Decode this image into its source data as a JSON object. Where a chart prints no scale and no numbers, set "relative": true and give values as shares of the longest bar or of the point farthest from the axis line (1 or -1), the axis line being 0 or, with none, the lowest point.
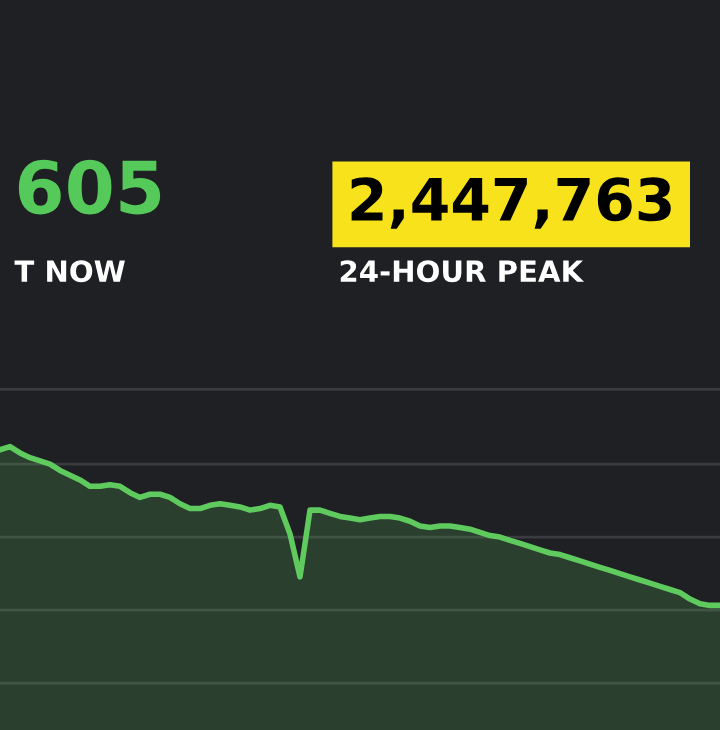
{
  "chart_data": {
    "type": "area",
    "relative": true,
    "color": "#5fcb5f",
    "ref_lines": [
      {
        "axis": "y",
        "value": 1.36,
        "color": "#3a3b3f"
      },
      {
        "axis": "y",
        "value": 0.89,
        "color": "#3a3b3f"
      },
      {
        "axis": "y",
        "value": 0.43,
        "color": "#3a3b3f"
      },
      {
        "axis": "y",
        "value": -0.03,
        "color": "#3a3b3f"
      },
      {
        "axis": "y",
        "value": -0.49,
        "color": "#3a3b3f"
      }
    ],
    "annotations": [
      "605",
      "T NOW",
      "2,447,763",
      "24-HOUR PEAK"
    ],
    "categories": [
      null,
      null,
      null,
      null,
      null,
      null,
      null,
      null,
      null,
      null,
      null,
      null,
      null,
      null,
      null,
      null,
      null,
      null,
      null,
      null,
      null,
      null,
      null,
      null,
      null,
      null,
      null,
      null,
      null,
      null,
      null,
      null,
      null,
      null,
      null,
      null,
      null,
      null,
      null,
      null,
      null,
      null,
      null,
      null,
      null,
      null,
      null,
      null,
      null,
      null,
      null,
      null,
      null,
      null,
      null,
      null,
      null,
      null,
      null,
      null,
      null,
      null,
      null,
      null,
      null,
      null,
      null,
      null,
      null,
      null,
      null,
      null,
      null
    ],
    "values": [
      0.98,
      1.0,
      0.96,
      0.93,
      0.91,
      0.89,
      0.85,
      0.82,
      0.79,
      0.75,
      0.75,
      0.76,
      0.75,
      0.71,
      0.68,
      0.7,
      0.7,
      0.68,
      0.64,
      0.61,
      0.61,
      0.63,
      0.64,
      0.63,
      0.62,
      0.6,
      0.61,
      0.63,
      0.62,
      0.45,
      0.18,
      0.6,
      0.6,
      0.58,
      0.56,
      0.55,
      0.54,
      0.55,
      0.56,
      0.56,
      0.55,
      0.53,
      0.5,
      0.49,
      0.5,
      0.5,
      0.49,
      0.48,
      0.46,
      0.44,
      0.43,
      0.41,
      0.39,
      0.37,
      0.35,
      0.33,
      0.32,
      0.3,
      0.28,
      0.26,
      0.24,
      0.22,
      0.2,
      0.18,
      0.16,
      0.14,
      0.12,
      0.1,
      0.08,
      0.04,
      0.01,
      0.0,
      0.0
    ]
  }
}
